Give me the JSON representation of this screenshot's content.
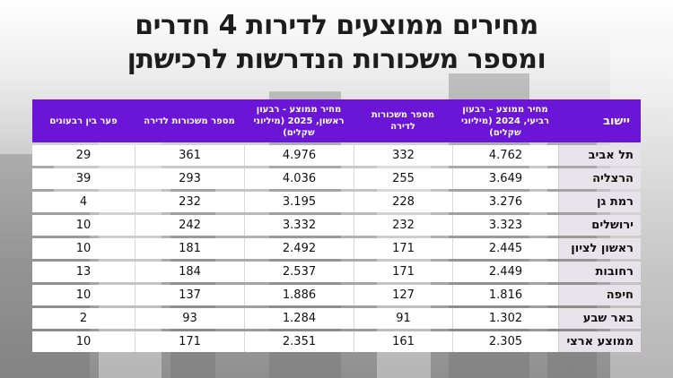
{
  "title": {
    "line1": "מחירים ממוצעים לדירות 4 חדרים",
    "line2": "ומספר משכורות הנדרשות לרכישתן"
  },
  "table": {
    "headers": [
      "יישוב",
      "מחיר ממוצע – רבעון רביעי, 2024 (מיליוני שקלים)",
      "מספר משכורות לדירה",
      "מחיר ממוצע - רבעון ראשון, 2025 (מיליוני שקלים)",
      "מספר משכורות לדירה",
      "פער בין רבעונים"
    ],
    "rows": [
      [
        "תל אביב",
        "4.762",
        "332",
        "4.976",
        "361",
        "29"
      ],
      [
        "הרצליה",
        "3.649",
        "255",
        "4.036",
        "293",
        "39"
      ],
      [
        "רמת גן",
        "3.276",
        "228",
        "3.195",
        "232",
        "4"
      ],
      [
        "ירושלים",
        "3.323",
        "232",
        "3.332",
        "242",
        "10"
      ],
      [
        "ראשון לציון",
        "2.445",
        "171",
        "2.492",
        "181",
        "10"
      ],
      [
        "רחובות",
        "2.449",
        "171",
        "2.537",
        "184",
        "13"
      ],
      [
        "חיפה",
        "1.816",
        "127",
        "1.886",
        "137",
        "10"
      ],
      [
        "באר שבע",
        "1.302",
        "91",
        "1.284",
        "93",
        "2"
      ],
      [
        "ממוצע ארצי",
        "2.305",
        "161",
        "2.351",
        "171",
        "10"
      ]
    ]
  }
}
